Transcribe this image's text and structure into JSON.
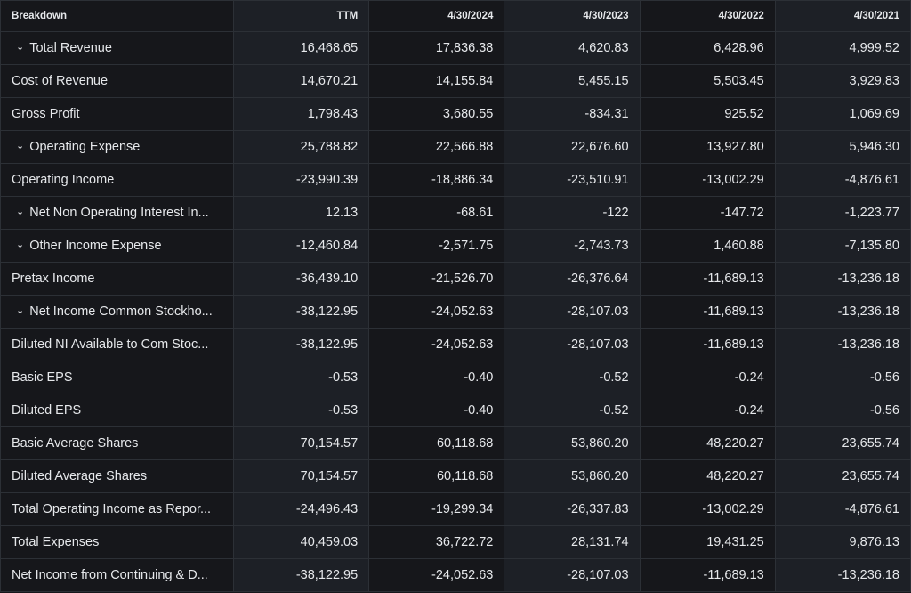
{
  "header": [
    "Breakdown",
    "TTM",
    "4/30/2024",
    "4/30/2023",
    "4/30/2022",
    "4/30/2021"
  ],
  "rows": [
    {
      "label": "Total Revenue",
      "expandable": true,
      "values": [
        "16,468.65",
        "17,836.38",
        "4,620.83",
        "6,428.96",
        "4,999.52"
      ]
    },
    {
      "label": "Cost of Revenue",
      "expandable": false,
      "values": [
        "14,670.21",
        "14,155.84",
        "5,455.15",
        "5,503.45",
        "3,929.83"
      ]
    },
    {
      "label": "Gross Profit",
      "expandable": false,
      "values": [
        "1,798.43",
        "3,680.55",
        "-834.31",
        "925.52",
        "1,069.69"
      ]
    },
    {
      "label": "Operating Expense",
      "expandable": true,
      "values": [
        "25,788.82",
        "22,566.88",
        "22,676.60",
        "13,927.80",
        "5,946.30"
      ]
    },
    {
      "label": "Operating Income",
      "expandable": false,
      "values": [
        "-23,990.39",
        "-18,886.34",
        "-23,510.91",
        "-13,002.29",
        "-4,876.61"
      ]
    },
    {
      "label": "Net Non Operating Interest In...",
      "expandable": true,
      "values": [
        "12.13",
        "-68.61",
        "-122",
        "-147.72",
        "-1,223.77"
      ]
    },
    {
      "label": "Other Income Expense",
      "expandable": true,
      "values": [
        "-12,460.84",
        "-2,571.75",
        "-2,743.73",
        "1,460.88",
        "-7,135.80"
      ]
    },
    {
      "label": "Pretax Income",
      "expandable": false,
      "values": [
        "-36,439.10",
        "-21,526.70",
        "-26,376.64",
        "-11,689.13",
        "-13,236.18"
      ]
    },
    {
      "label": "Net Income Common Stockho...",
      "expandable": true,
      "values": [
        "-38,122.95",
        "-24,052.63",
        "-28,107.03",
        "-11,689.13",
        "-13,236.18"
      ]
    },
    {
      "label": "Diluted NI Available to Com Stoc...",
      "expandable": false,
      "values": [
        "-38,122.95",
        "-24,052.63",
        "-28,107.03",
        "-11,689.13",
        "-13,236.18"
      ]
    },
    {
      "label": "Basic EPS",
      "expandable": false,
      "values": [
        "-0.53",
        "-0.40",
        "-0.52",
        "-0.24",
        "-0.56"
      ]
    },
    {
      "label": "Diluted EPS",
      "expandable": false,
      "values": [
        "-0.53",
        "-0.40",
        "-0.52",
        "-0.24",
        "-0.56"
      ]
    },
    {
      "label": "Basic Average Shares",
      "expandable": false,
      "values": [
        "70,154.57",
        "60,118.68",
        "53,860.20",
        "48,220.27",
        "23,655.74"
      ]
    },
    {
      "label": "Diluted Average Shares",
      "expandable": false,
      "values": [
        "70,154.57",
        "60,118.68",
        "53,860.20",
        "48,220.27",
        "23,655.74"
      ]
    },
    {
      "label": "Total Operating Income as Repor...",
      "expandable": false,
      "values": [
        "-24,496.43",
        "-19,299.34",
        "-26,337.83",
        "-13,002.29",
        "-4,876.61"
      ]
    },
    {
      "label": "Total Expenses",
      "expandable": false,
      "values": [
        "40,459.03",
        "36,722.72",
        "28,131.74",
        "19,431.25",
        "9,876.13"
      ]
    },
    {
      "label": "Net Income from Continuing & D...",
      "expandable": false,
      "values": [
        "-38,122.95",
        "-24,052.63",
        "-28,107.03",
        "-11,689.13",
        "-13,236.18"
      ]
    }
  ]
}
